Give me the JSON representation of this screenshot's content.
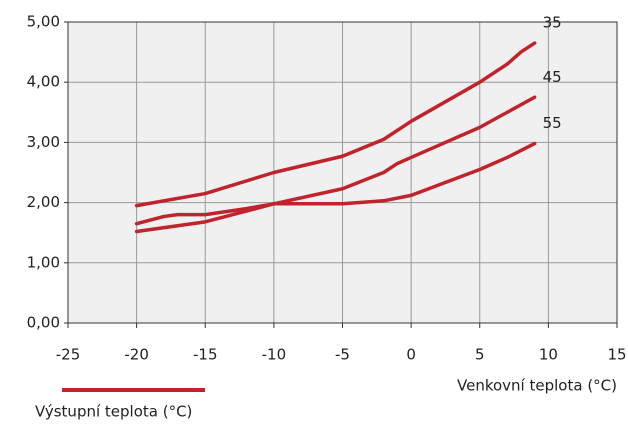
{
  "chart_data": {
    "type": "line",
    "xlabel": "Venkovní teplota (°C)",
    "legend_label": "Výstupní teplota (°C)",
    "color": "#c0232c",
    "series": [
      {
        "name": "35",
        "x": [
          -20,
          -15,
          -10,
          -5,
          -2,
          0,
          5,
          7,
          8,
          9
        ],
        "values": [
          1.95,
          2.15,
          2.5,
          2.77,
          3.05,
          3.35,
          4.0,
          4.3,
          4.5,
          4.65
        ]
      },
      {
        "name": "45",
        "x": [
          -20,
          -18,
          -17,
          -15,
          -12,
          -10,
          -5,
          -2,
          -1,
          0,
          5,
          9
        ],
        "values": [
          1.65,
          1.77,
          1.8,
          1.8,
          1.9,
          1.98,
          2.23,
          2.5,
          2.65,
          2.75,
          3.25,
          3.75
        ]
      },
      {
        "name": "55",
        "x": [
          -20,
          -15,
          -10,
          -5,
          -2,
          0,
          5,
          7,
          9
        ],
        "values": [
          1.52,
          1.68,
          1.98,
          1.98,
          2.03,
          2.12,
          2.55,
          2.75,
          2.98
        ]
      }
    ],
    "xlim": [
      -25,
      15
    ],
    "xticks": [
      -25,
      -20,
      -15,
      -10,
      -5,
      0,
      5,
      10,
      15
    ],
    "ylim": [
      0,
      5
    ],
    "yticks": [
      {
        "value": 0,
        "label": "0,00"
      },
      {
        "value": 1,
        "label": "1,00"
      },
      {
        "value": 2,
        "label": "2,00"
      },
      {
        "value": 3,
        "label": "3,00"
      },
      {
        "value": 4,
        "label": "4,00"
      },
      {
        "value": 5,
        "label": "5,00"
      }
    ],
    "grid": true
  }
}
